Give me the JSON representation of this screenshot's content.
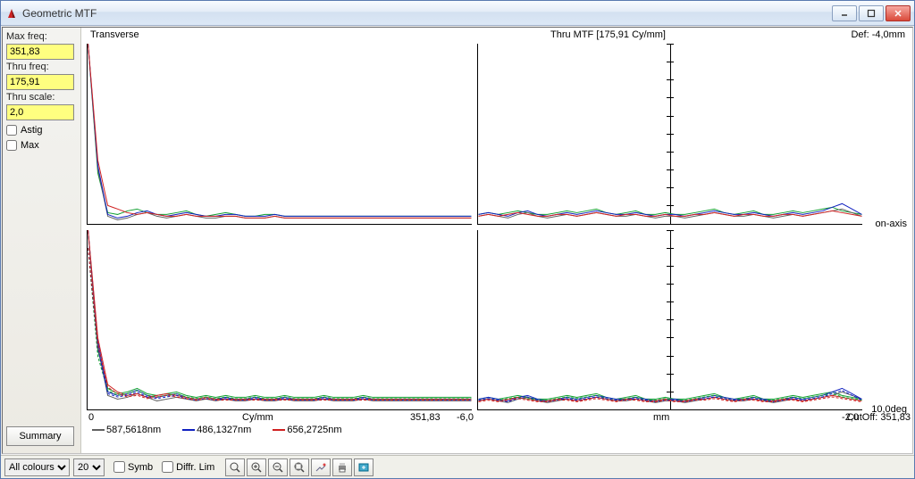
{
  "window": {
    "title": "Geometric MTF"
  },
  "sidebar": {
    "maxfreq_label": "Max freq:",
    "maxfreq_value": "351,83",
    "thrufreq_label": "Thru freq:",
    "thrufreq_value": "175,91",
    "thruscale_label": "Thru scale:",
    "thruscale_value": "2,0",
    "astig_label": "Astig",
    "max_label": "Max",
    "summary_label": "Summary"
  },
  "headers": {
    "transverse": "Transverse",
    "thru_mtf": "Thru MTF [175,91 Cy/mm]",
    "def": "Def:   -4,0mm"
  },
  "row_labels": {
    "onaxis": "on-axis",
    "tendeg": "10,0deg"
  },
  "xaxis_left": {
    "min": "0",
    "unit": "Cy/mm",
    "max": "351,83"
  },
  "xaxis_right": {
    "min": "-6,0",
    "unit": "mm",
    "max": "-2,0"
  },
  "cutoff": "CutOff: 351,83",
  "legend": [
    {
      "label": "587,5618nm",
      "color": "#606060"
    },
    {
      "label": "486,1327nm",
      "color": "#1020c0"
    },
    {
      "label": "656,2725nm",
      "color": "#d02020"
    }
  ],
  "bottombar": {
    "colours": "All colours",
    "size": "20",
    "symb_label": "Symb",
    "diffr_label": "Diffr. Lim"
  },
  "colors": {
    "series_green": "#10a030",
    "series_blue": "#1020c0",
    "series_red": "#d02020",
    "series_gray": "#606060"
  },
  "chart": {
    "left_xrange": [
      0,
      351.83
    ],
    "right_xrange": [
      -6.0,
      -2.0
    ],
    "yrange": [
      0,
      1.0
    ],
    "n": 40,
    "top_left": {
      "gray": [
        1.0,
        0.3,
        0.04,
        0.02,
        0.03,
        0.05,
        0.06,
        0.04,
        0.03,
        0.04,
        0.05,
        0.04,
        0.03,
        0.03,
        0.04,
        0.04,
        0.03,
        0.03,
        0.03,
        0.04,
        0.03,
        0.03,
        0.03,
        0.03,
        0.03,
        0.03,
        0.03,
        0.03,
        0.03,
        0.03,
        0.03,
        0.03,
        0.03,
        0.03,
        0.03,
        0.03,
        0.03,
        0.03,
        0.03,
        0.03
      ],
      "blue": [
        1.0,
        0.32,
        0.05,
        0.03,
        0.04,
        0.06,
        0.07,
        0.05,
        0.04,
        0.05,
        0.06,
        0.05,
        0.04,
        0.04,
        0.05,
        0.05,
        0.04,
        0.04,
        0.04,
        0.05,
        0.04,
        0.04,
        0.04,
        0.04,
        0.04,
        0.04,
        0.04,
        0.04,
        0.04,
        0.04,
        0.04,
        0.04,
        0.04,
        0.04,
        0.04,
        0.04,
        0.04,
        0.04,
        0.04,
        0.04
      ],
      "red": [
        1.0,
        0.35,
        0.1,
        0.08,
        0.06,
        0.05,
        0.06,
        0.05,
        0.04,
        0.04,
        0.05,
        0.04,
        0.04,
        0.04,
        0.04,
        0.04,
        0.03,
        0.03,
        0.03,
        0.04,
        0.03,
        0.03,
        0.03,
        0.03,
        0.03,
        0.03,
        0.03,
        0.03,
        0.03,
        0.03,
        0.03,
        0.03,
        0.03,
        0.03,
        0.03,
        0.03,
        0.03,
        0.03,
        0.03,
        0.03
      ],
      "green": [
        1.0,
        0.28,
        0.06,
        0.05,
        0.07,
        0.08,
        0.06,
        0.05,
        0.05,
        0.06,
        0.07,
        0.05,
        0.04,
        0.05,
        0.06,
        0.05,
        0.04,
        0.04,
        0.05,
        0.05,
        0.04,
        0.04,
        0.04,
        0.04,
        0.04,
        0.04,
        0.04,
        0.04,
        0.04,
        0.04,
        0.04,
        0.04,
        0.04,
        0.04,
        0.04,
        0.04,
        0.04,
        0.04,
        0.04,
        0.04
      ]
    },
    "top_right": {
      "gray": [
        0.04,
        0.05,
        0.04,
        0.03,
        0.05,
        0.06,
        0.04,
        0.03,
        0.04,
        0.05,
        0.04,
        0.05,
        0.06,
        0.05,
        0.04,
        0.04,
        0.05,
        0.04,
        0.03,
        0.04,
        0.04,
        0.03,
        0.04,
        0.05,
        0.06,
        0.05,
        0.04,
        0.04,
        0.05,
        0.04,
        0.03,
        0.04,
        0.05,
        0.04,
        0.05,
        0.06,
        0.07,
        0.08,
        0.06,
        0.04
      ],
      "blue": [
        0.05,
        0.06,
        0.05,
        0.04,
        0.06,
        0.07,
        0.05,
        0.04,
        0.05,
        0.06,
        0.05,
        0.06,
        0.07,
        0.06,
        0.05,
        0.05,
        0.06,
        0.05,
        0.04,
        0.05,
        0.05,
        0.04,
        0.05,
        0.06,
        0.07,
        0.06,
        0.05,
        0.05,
        0.06,
        0.05,
        0.04,
        0.05,
        0.06,
        0.05,
        0.06,
        0.07,
        0.09,
        0.11,
        0.08,
        0.05
      ],
      "red": [
        0.04,
        0.05,
        0.04,
        0.05,
        0.06,
        0.05,
        0.04,
        0.04,
        0.05,
        0.05,
        0.04,
        0.05,
        0.06,
        0.05,
        0.04,
        0.05,
        0.05,
        0.04,
        0.04,
        0.05,
        0.04,
        0.04,
        0.05,
        0.05,
        0.06,
        0.05,
        0.04,
        0.05,
        0.05,
        0.04,
        0.04,
        0.05,
        0.05,
        0.04,
        0.05,
        0.06,
        0.07,
        0.06,
        0.05,
        0.04
      ],
      "green": [
        0.05,
        0.06,
        0.05,
        0.06,
        0.07,
        0.06,
        0.05,
        0.05,
        0.06,
        0.07,
        0.06,
        0.07,
        0.08,
        0.06,
        0.05,
        0.06,
        0.07,
        0.05,
        0.05,
        0.06,
        0.05,
        0.05,
        0.06,
        0.07,
        0.08,
        0.06,
        0.05,
        0.06,
        0.07,
        0.05,
        0.05,
        0.06,
        0.07,
        0.06,
        0.07,
        0.08,
        0.09,
        0.07,
        0.06,
        0.05
      ]
    },
    "bot_left": {
      "gray": [
        1.0,
        0.35,
        0.08,
        0.06,
        0.07,
        0.09,
        0.07,
        0.05,
        0.06,
        0.07,
        0.06,
        0.05,
        0.06,
        0.05,
        0.06,
        0.05,
        0.05,
        0.06,
        0.05,
        0.05,
        0.06,
        0.05,
        0.05,
        0.05,
        0.06,
        0.05,
        0.05,
        0.05,
        0.06,
        0.05,
        0.05,
        0.05,
        0.05,
        0.05,
        0.05,
        0.05,
        0.05,
        0.05,
        0.05,
        0.05
      ],
      "blue": [
        1.0,
        0.38,
        0.1,
        0.08,
        0.09,
        0.11,
        0.08,
        0.07,
        0.08,
        0.09,
        0.07,
        0.06,
        0.07,
        0.06,
        0.07,
        0.06,
        0.06,
        0.07,
        0.06,
        0.06,
        0.07,
        0.06,
        0.06,
        0.06,
        0.07,
        0.06,
        0.06,
        0.06,
        0.07,
        0.06,
        0.06,
        0.06,
        0.06,
        0.06,
        0.06,
        0.06,
        0.06,
        0.06,
        0.06,
        0.06
      ],
      "red": [
        1.0,
        0.4,
        0.14,
        0.1,
        0.08,
        0.09,
        0.07,
        0.08,
        0.09,
        0.08,
        0.07,
        0.06,
        0.07,
        0.06,
        0.06,
        0.06,
        0.06,
        0.06,
        0.06,
        0.06,
        0.06,
        0.06,
        0.06,
        0.06,
        0.06,
        0.06,
        0.06,
        0.06,
        0.06,
        0.06,
        0.06,
        0.06,
        0.06,
        0.06,
        0.06,
        0.06,
        0.06,
        0.06,
        0.06,
        0.06
      ],
      "green": [
        1.0,
        0.33,
        0.12,
        0.09,
        0.1,
        0.12,
        0.09,
        0.08,
        0.09,
        0.1,
        0.08,
        0.07,
        0.08,
        0.07,
        0.08,
        0.07,
        0.07,
        0.08,
        0.07,
        0.07,
        0.08,
        0.07,
        0.07,
        0.07,
        0.08,
        0.07,
        0.07,
        0.07,
        0.08,
        0.07,
        0.07,
        0.07,
        0.07,
        0.07,
        0.07,
        0.07,
        0.07,
        0.07,
        0.07,
        0.07
      ]
    },
    "bot_right": {
      "gray": [
        0.05,
        0.06,
        0.05,
        0.04,
        0.06,
        0.07,
        0.05,
        0.04,
        0.05,
        0.06,
        0.05,
        0.06,
        0.07,
        0.06,
        0.05,
        0.05,
        0.06,
        0.05,
        0.04,
        0.05,
        0.05,
        0.04,
        0.05,
        0.06,
        0.07,
        0.06,
        0.05,
        0.05,
        0.06,
        0.05,
        0.04,
        0.05,
        0.06,
        0.05,
        0.06,
        0.07,
        0.08,
        0.1,
        0.08,
        0.06
      ],
      "blue": [
        0.06,
        0.07,
        0.06,
        0.05,
        0.07,
        0.08,
        0.06,
        0.05,
        0.06,
        0.07,
        0.06,
        0.07,
        0.08,
        0.07,
        0.06,
        0.06,
        0.07,
        0.06,
        0.05,
        0.06,
        0.06,
        0.05,
        0.06,
        0.07,
        0.08,
        0.07,
        0.06,
        0.06,
        0.07,
        0.06,
        0.05,
        0.06,
        0.07,
        0.06,
        0.07,
        0.08,
        0.1,
        0.12,
        0.09,
        0.06
      ],
      "red": [
        0.05,
        0.06,
        0.05,
        0.06,
        0.07,
        0.06,
        0.05,
        0.05,
        0.06,
        0.06,
        0.05,
        0.06,
        0.07,
        0.06,
        0.05,
        0.06,
        0.06,
        0.05,
        0.05,
        0.06,
        0.05,
        0.05,
        0.06,
        0.06,
        0.07,
        0.06,
        0.05,
        0.06,
        0.06,
        0.05,
        0.05,
        0.06,
        0.06,
        0.05,
        0.06,
        0.07,
        0.08,
        0.07,
        0.06,
        0.05
      ],
      "green": [
        0.06,
        0.07,
        0.06,
        0.07,
        0.08,
        0.07,
        0.06,
        0.06,
        0.07,
        0.08,
        0.07,
        0.08,
        0.09,
        0.07,
        0.06,
        0.07,
        0.08,
        0.06,
        0.06,
        0.07,
        0.06,
        0.06,
        0.07,
        0.08,
        0.09,
        0.07,
        0.06,
        0.07,
        0.08,
        0.06,
        0.06,
        0.07,
        0.08,
        0.07,
        0.08,
        0.09,
        0.1,
        0.08,
        0.07,
        0.06
      ]
    }
  }
}
